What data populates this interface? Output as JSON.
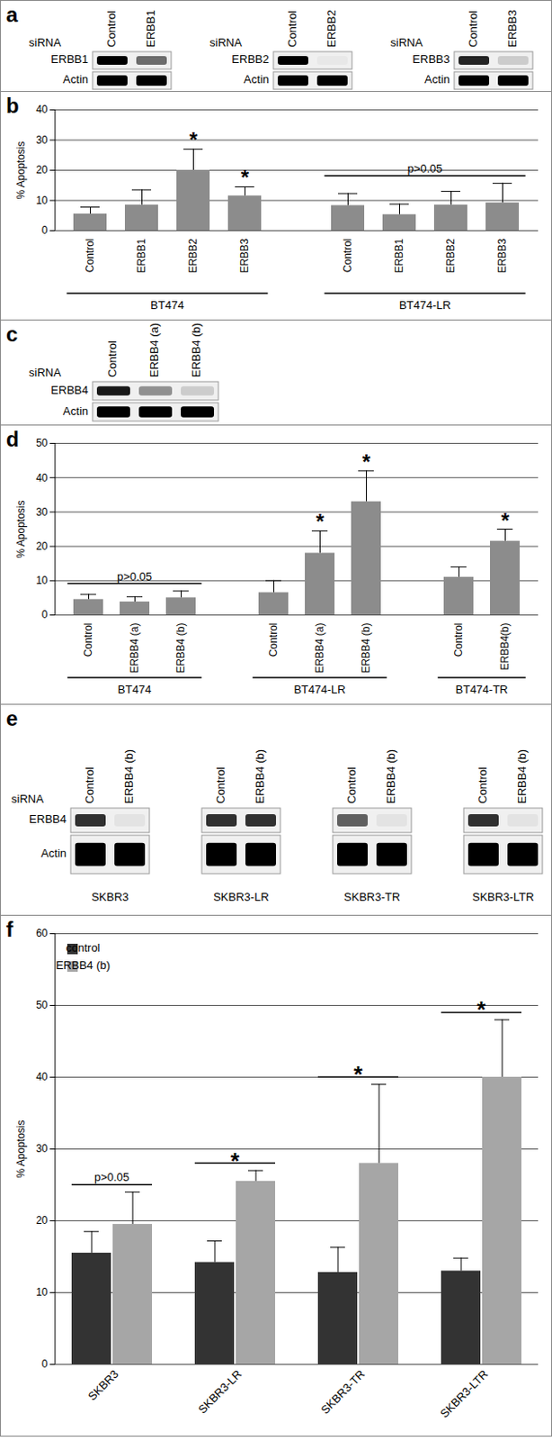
{
  "blots": [
    {
      "panel_label": "a",
      "blots": [
        {
          "label": "siRNA",
          "lanes": [
            "Control",
            "ERBB1"
          ],
          "row_labels": [
            "ERBB1",
            "Actin"
          ],
          "intensity": [
            [
              1,
              0.55
            ],
            [
              1,
              1
            ]
          ]
        },
        {
          "label": "siRNA",
          "lanes": [
            "Control",
            "ERBB2"
          ],
          "row_labels": [
            "ERBB2",
            "Actin"
          ],
          "intensity": [
            [
              1,
              0.03
            ],
            [
              1,
              1
            ]
          ]
        },
        {
          "label": "siRNA",
          "lanes": [
            "Control",
            "ERBB3"
          ],
          "row_labels": [
            "ERBB3",
            "Actin"
          ],
          "intensity": [
            [
              0.85,
              0.15
            ],
            [
              1,
              1
            ]
          ]
        }
      ]
    },
    {
      "panel_label": "c",
      "label": "siRNA",
      "blots": [
        {
          "lanes": [
            "Control",
            "ERBB4 (a)",
            "ERBB4 (b)"
          ],
          "row_labels": [
            "ERBB4",
            "Actin"
          ],
          "intensity": [
            [
              0.9,
              0.4,
              0.15
            ],
            [
              1,
              1,
              1
            ]
          ]
        }
      ]
    },
    {
      "panel_label": "e",
      "label": "siRNA",
      "row_labels": [
        "ERBB4",
        "Actin"
      ],
      "blots": [
        {
          "lanes": [
            "Control",
            "ERBB4 (b)"
          ],
          "caption": "SKBR3",
          "intensity": [
            [
              0.8,
              0.05
            ],
            [
              1,
              1
            ]
          ]
        },
        {
          "lanes": [
            "Control",
            "ERBB4 (b)"
          ],
          "caption": "SKBR3-LR",
          "intensity": [
            [
              0.8,
              0.8
            ],
            [
              1,
              1
            ]
          ]
        },
        {
          "lanes": [
            "Control",
            "ERBB4 (b)"
          ],
          "caption": "SKBR3-TR",
          "intensity": [
            [
              0.6,
              0.05
            ],
            [
              1,
              1
            ]
          ]
        },
        {
          "lanes": [
            "Control",
            "ERBB4 (b)"
          ],
          "caption": "SKBR3-LTR",
          "intensity": [
            [
              0.8,
              0.05
            ],
            [
              1,
              1
            ]
          ]
        }
      ]
    }
  ],
  "chart_data": [
    {
      "panel_label": "b",
      "type": "bar",
      "y_label": "% Apoptosis",
      "categories": [
        "Control",
        "ERBB1",
        "ERBB2",
        "ERBB3",
        null,
        "Control",
        "ERBB1",
        "ERBB2",
        "ERBB3"
      ],
      "values": [
        5.5,
        8.5,
        20,
        11.5,
        null,
        8.3,
        5.3,
        8.5,
        9.2
      ],
      "errors": [
        2.3,
        5,
        7,
        3,
        null,
        4,
        3.5,
        4.5,
        6.5
      ],
      "significance": [
        null,
        null,
        "*",
        "*",
        null,
        null,
        null,
        null,
        null
      ],
      "groups": [
        "BT474",
        "BT474-LR"
      ],
      "group_annotations": [
        null,
        "p>0.05"
      ],
      "color": "#8c8c8c",
      "ylim": [
        0,
        40
      ],
      "yticks": [
        0,
        10,
        20,
        30,
        40
      ],
      "grid": true
    },
    {
      "panel_label": "d",
      "type": "bar",
      "y_label": "% Apoptosis",
      "categories": [
        "Control",
        "ERBB4 (a)",
        "ERBB4 (b)",
        null,
        "Control",
        "ERBB4 (a)",
        "ERBB4 (b)",
        null,
        "Control",
        "ERBB4(b)"
      ],
      "values": [
        4.5,
        3.8,
        5,
        null,
        6.5,
        18,
        33,
        null,
        11,
        21.5
      ],
      "errors": [
        1.5,
        1.5,
        2,
        null,
        3.5,
        6.5,
        9,
        null,
        3,
        3.5
      ],
      "significance": [
        null,
        null,
        null,
        null,
        null,
        "*",
        "*",
        null,
        null,
        "*"
      ],
      "groups": [
        "BT474",
        "BT474-LR",
        "BT474-TR"
      ],
      "group_annotations": [
        "p>0.05",
        null,
        null
      ],
      "color": "#8c8c8c",
      "ylim": [
        0,
        50
      ],
      "yticks": [
        0,
        10,
        20,
        30,
        40,
        50
      ],
      "grid": true
    },
    {
      "panel_label": "f",
      "type": "bar",
      "y_label": "% Apoptosis",
      "categories": [
        "SKBR3",
        "SKBR3-LR",
        "SKBR3-TR",
        "SKBR3-LTR"
      ],
      "series": [
        {
          "name": "control",
          "color": "#333333",
          "values": [
            15.5,
            14.2,
            12.8,
            13
          ],
          "errors": [
            3,
            3,
            3.5,
            1.8
          ]
        },
        {
          "name": "ERBB4 (b)",
          "color": "#a6a6a6",
          "values": [
            19.5,
            25.5,
            28,
            40
          ],
          "errors": [
            4.5,
            1.5,
            11,
            8
          ]
        }
      ],
      "annotations": [
        "p>0.05",
        "*",
        "*",
        "*"
      ],
      "legend": "top-left",
      "ylim": [
        0,
        60
      ],
      "yticks": [
        0,
        10,
        20,
        30,
        40,
        50,
        60
      ],
      "grid": true
    }
  ]
}
